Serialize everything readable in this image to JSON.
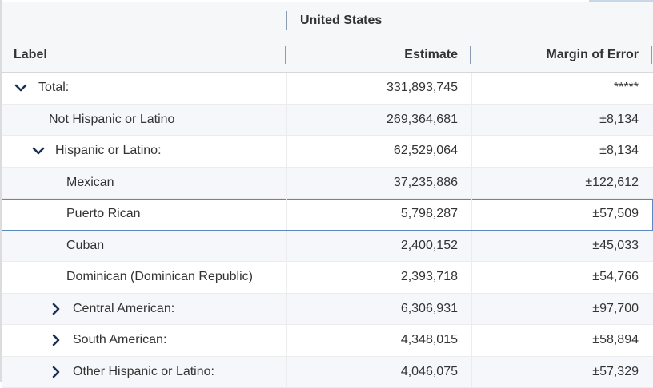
{
  "geography": {
    "name": "United States"
  },
  "columns": {
    "label": "Label",
    "estimate": "Estimate",
    "margin_of_error": "Margin of Error"
  },
  "rows": [
    {
      "label": "Total:",
      "estimate": "331,893,745",
      "moe": "*****",
      "toggle": "chevron-down-icon"
    },
    {
      "label": "Not Hispanic or Latino",
      "estimate": "269,364,681",
      "moe": "±8,134",
      "toggle": ""
    },
    {
      "label": "Hispanic or Latino:",
      "estimate": "62,529,064",
      "moe": "±8,134",
      "toggle": "chevron-down-icon"
    },
    {
      "label": "Mexican",
      "estimate": "37,235,886",
      "moe": "±122,612",
      "toggle": ""
    },
    {
      "label": "Puerto Rican",
      "estimate": "5,798,287",
      "moe": "±57,509",
      "toggle": ""
    },
    {
      "label": "Cuban",
      "estimate": "2,400,152",
      "moe": "±45,033",
      "toggle": ""
    },
    {
      "label": "Dominican (Dominican Republic)",
      "estimate": "2,393,718",
      "moe": "±54,766",
      "toggle": ""
    },
    {
      "label": "Central American:",
      "estimate": "6,306,931",
      "moe": "±97,700",
      "toggle": "chevron-right-icon"
    },
    {
      "label": "South American:",
      "estimate": "4,348,015",
      "moe": "±58,894",
      "toggle": "chevron-right-icon"
    },
    {
      "label": "Other Hispanic or Latino:",
      "estimate": "4,046,075",
      "moe": "±57,329",
      "toggle": "chevron-right-icon"
    }
  ],
  "colors": {
    "chevron": "#1b2f55",
    "selected_border": "#5b88bf",
    "header_bg": "#f6f7f9",
    "alt_row_bg": "#f5f7fa"
  }
}
